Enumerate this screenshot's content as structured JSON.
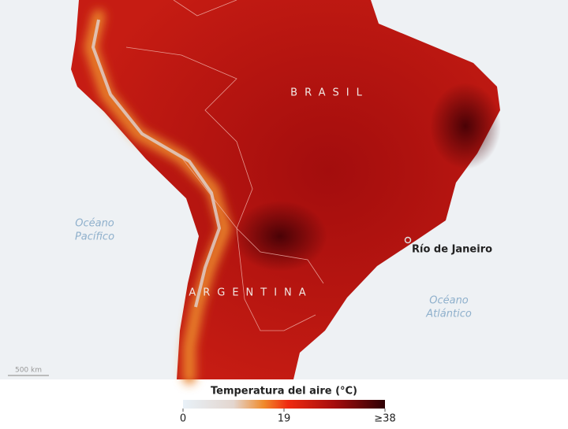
{
  "map": {
    "labels": {
      "country_1": "BRASIL",
      "country_2": "ARGENTINA",
      "city": "Río de Janeiro",
      "ocean_1": [
        "Océano",
        "Pacífico"
      ],
      "ocean_2": [
        "Océano",
        "Atlántico"
      ]
    },
    "scale_bar": "500 km",
    "legend": {
      "title": "Temperatura del aire (°C)",
      "min": 0,
      "max": 38,
      "ticks": [
        0,
        19,
        {
          "value": 38,
          "label": "≥38"
        }
      ]
    }
  }
}
